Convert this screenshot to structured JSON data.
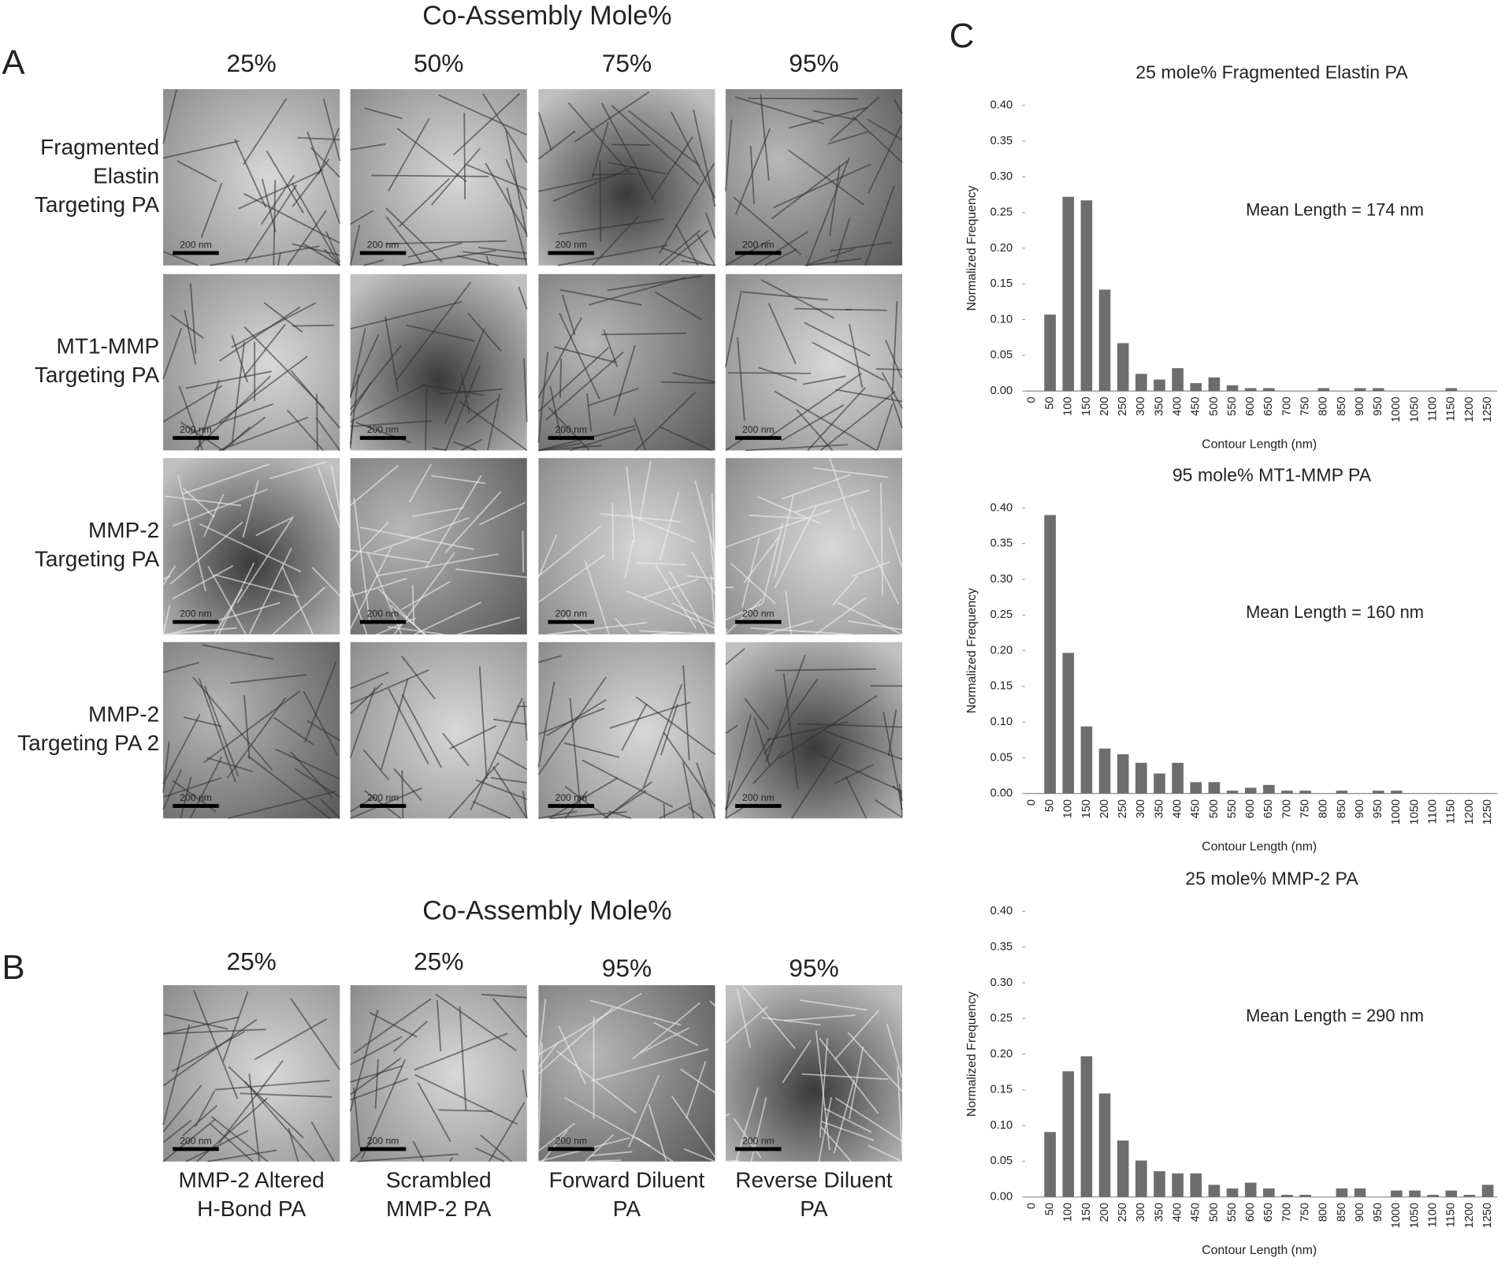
{
  "figure": {
    "panel_a": {
      "letter": "A",
      "title": "Co-Assembly Mole%",
      "columns": [
        "25%",
        "50%",
        "75%",
        "95%"
      ],
      "rows": [
        [
          "Fragmented",
          "Elastin",
          "Targeting PA"
        ],
        [
          "MT1-MMP",
          "Targeting PA"
        ],
        [
          "MMP-2",
          "Targeting PA"
        ],
        [
          "MMP-2",
          "Targeting PA 2"
        ]
      ]
    },
    "panel_b": {
      "letter": "B",
      "title": "Co-Assembly Mole%",
      "columns": [
        "25%",
        "25%",
        "95%",
        "95%"
      ],
      "labels": [
        [
          "MMP-2 Altered",
          "H-Bond PA"
        ],
        [
          "Scrambled",
          "MMP-2 PA"
        ],
        [
          "Forward Diluent",
          "PA"
        ],
        [
          "Reverse Diluent",
          "PA"
        ]
      ]
    },
    "panel_c": {
      "letter": "C"
    },
    "scale_bar": "200 nm"
  },
  "chart_data": [
    {
      "type": "bar",
      "title": "25 mole% Fragmented Elastin PA",
      "annotation": "Mean Length = 174 nm",
      "x_label": "Contour Length (nm)",
      "y_label": "Normalized Frequency",
      "color": "#6d6d6d",
      "categories": [
        "0",
        "50",
        "100",
        "150",
        "200",
        "250",
        "300",
        "350",
        "400",
        "450",
        "500",
        "550",
        "600",
        "650",
        "700",
        "750",
        "800",
        "850",
        "900",
        "950",
        "1000",
        "1050",
        "1100",
        "1150",
        "1200",
        "1250"
      ],
      "values": [
        0,
        0.107,
        0.272,
        0.267,
        0.142,
        0.067,
        0.024,
        0.016,
        0.032,
        0.011,
        0.019,
        0.008,
        0.004,
        0.004,
        0,
        0,
        0.004,
        0,
        0.004,
        0.004,
        0,
        0,
        0,
        0.004,
        0,
        0
      ],
      "ylim": [
        0,
        0.4
      ],
      "yticks": [
        {
          "value": 0,
          "label": "0.00"
        },
        {
          "value": 0.05,
          "label": "0.05"
        },
        {
          "value": 0.1,
          "label": "0.10"
        },
        {
          "value": 0.15,
          "label": "0.15"
        },
        {
          "value": 0.2,
          "label": "0.20"
        },
        {
          "value": 0.25,
          "label": "0.25"
        },
        {
          "value": 0.3,
          "label": "0.30"
        },
        {
          "value": 0.35,
          "label": "0.35"
        },
        {
          "value": 0.4,
          "label": "0.40"
        }
      ]
    },
    {
      "type": "bar",
      "title": "95 mole% MT1-MMP PA",
      "annotation": "Mean Length = 160 nm",
      "x_label": "Contour Length (nm)",
      "y_label": "Normalized Frequency",
      "color": "#6d6d6d",
      "categories": [
        "0",
        "50",
        "100",
        "150",
        "200",
        "250",
        "300",
        "350",
        "400",
        "450",
        "500",
        "550",
        "600",
        "650",
        "700",
        "750",
        "800",
        "850",
        "900",
        "950",
        "1000",
        "1050",
        "1100",
        "1150",
        "1200",
        "1250"
      ],
      "values": [
        0,
        0.39,
        0.197,
        0.094,
        0.063,
        0.055,
        0.043,
        0.028,
        0.043,
        0.016,
        0.016,
        0.004,
        0.008,
        0.012,
        0.004,
        0.004,
        0,
        0.004,
        0,
        0.004,
        0.004,
        0,
        0,
        0,
        0,
        0
      ],
      "ylim": [
        0,
        0.4
      ],
      "yticks": [
        {
          "value": 0,
          "label": "0.00"
        },
        {
          "value": 0.05,
          "label": "0.05"
        },
        {
          "value": 0.1,
          "label": "0.10"
        },
        {
          "value": 0.15,
          "label": "0.15"
        },
        {
          "value": 0.2,
          "label": "0.20"
        },
        {
          "value": 0.25,
          "label": "0.25"
        },
        {
          "value": 0.3,
          "label": "0.30"
        },
        {
          "value": 0.35,
          "label": "0.35"
        },
        {
          "value": 0.4,
          "label": "0.40"
        }
      ]
    },
    {
      "type": "bar",
      "title": "25 mole% MMP-2 PA",
      "annotation": "Mean Length = 290 nm",
      "x_label": "Contour Length (nm)",
      "y_label": "Normalized Frequency",
      "color": "#6d6d6d",
      "categories": [
        "0",
        "50",
        "100",
        "150",
        "200",
        "250",
        "300",
        "350",
        "400",
        "450",
        "500",
        "550",
        "600",
        "650",
        "700",
        "750",
        "800",
        "850",
        "900",
        "950",
        "1000",
        "1050",
        "1100",
        "1150",
        "1200",
        "1250"
      ],
      "values": [
        0,
        0.091,
        0.176,
        0.197,
        0.145,
        0.079,
        0.051,
        0.036,
        0.033,
        0.033,
        0.017,
        0.012,
        0.02,
        0.012,
        0.003,
        0.003,
        0,
        0.012,
        0.012,
        0,
        0.009,
        0.009,
        0.003,
        0.009,
        0.003,
        0.017
      ],
      "ylim": [
        0,
        0.4
      ],
      "yticks": [
        {
          "value": 0,
          "label": "0.00"
        },
        {
          "value": 0.05,
          "label": "0.05"
        },
        {
          "value": 0.1,
          "label": "0.10"
        },
        {
          "value": 0.15,
          "label": "0.15"
        },
        {
          "value": 0.2,
          "label": "0.20"
        },
        {
          "value": 0.25,
          "label": "0.25"
        },
        {
          "value": 0.3,
          "label": "0.30"
        },
        {
          "value": 0.35,
          "label": "0.35"
        },
        {
          "value": 0.4,
          "label": "0.40"
        }
      ]
    }
  ]
}
